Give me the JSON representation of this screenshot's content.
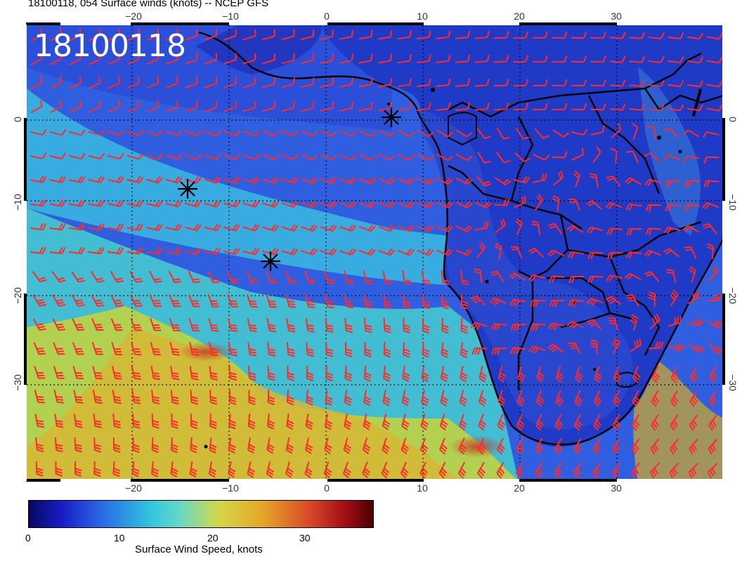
{
  "header": {
    "title": "18100118, 054 Surface winds (knots) -- NCEP GFS",
    "stamp": "18100118"
  },
  "map": {
    "lon_ticks_top": [
      "−20",
      "−10",
      "0",
      "10",
      "20",
      "30"
    ],
    "lon_ticks_bottom": [
      "−20",
      "−10",
      "0",
      "10",
      "20",
      "30"
    ],
    "lat_ticks_left": [
      "0",
      "−10",
      "−20",
      "−30"
    ],
    "lat_ticks_right": [
      "0",
      "−10",
      "−20",
      "−30"
    ],
    "markers": [
      {
        "name": "storm-marker-gulf"
      },
      {
        "name": "storm-marker-north"
      },
      {
        "name": "storm-marker-south"
      }
    ],
    "colors": {
      "barb": "#ff2a2a",
      "coast": "#000000",
      "marker": "#000000"
    }
  },
  "colorbar": {
    "title": "Surface Wind Speed, knots",
    "labels": [
      "0",
      "10",
      "20",
      "30"
    ],
    "colors": [
      "#06085e",
      "#1a1ec9",
      "#2b6fe6",
      "#33c8dd",
      "#d3d84a",
      "#e5a628",
      "#d94528",
      "#4a0000"
    ]
  }
}
